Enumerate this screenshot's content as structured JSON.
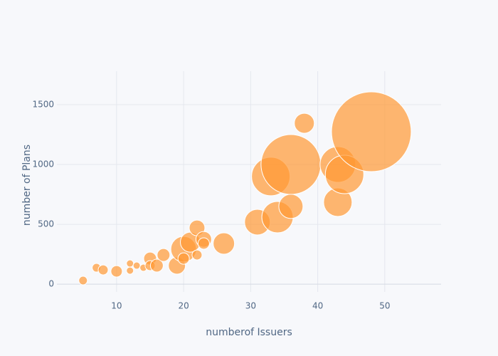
{
  "chart_data": {
    "type": "bubble",
    "x_label": "numberof Issuers",
    "y_label": "number of Plans",
    "color": "#ff9933",
    "grid": true,
    "xlim": [
      1.1,
      58.4
    ],
    "ylim": [
      -65,
      1780
    ],
    "xticks": [
      10,
      20,
      30,
      40,
      50
    ],
    "yticks": [
      0,
      500,
      1000,
      1500
    ],
    "x": [
      5,
      7,
      8,
      10,
      12,
      12,
      13,
      14,
      15,
      15,
      16,
      17,
      19,
      20,
      20,
      21,
      22,
      22,
      23,
      23,
      26,
      31,
      33,
      34,
      36,
      36,
      38,
      43,
      43,
      44,
      48
    ],
    "y": [
      30,
      137,
      119,
      107,
      113,
      173,
      155,
      137,
      214,
      155,
      155,
      244,
      155,
      292,
      214,
      351,
      470,
      244,
      375,
      340,
      340,
      518,
      900,
      560,
      1000,
      650,
      1345,
      1000,
      685,
      917,
      1274
    ],
    "sizes": [
      6,
      6,
      7,
      8,
      5,
      5,
      5,
      5,
      9,
      7,
      9,
      9,
      12,
      18,
      8,
      14,
      11,
      7,
      11,
      8,
      15,
      18,
      27,
      22,
      42,
      17,
      14,
      25,
      20,
      27,
      56
    ]
  }
}
